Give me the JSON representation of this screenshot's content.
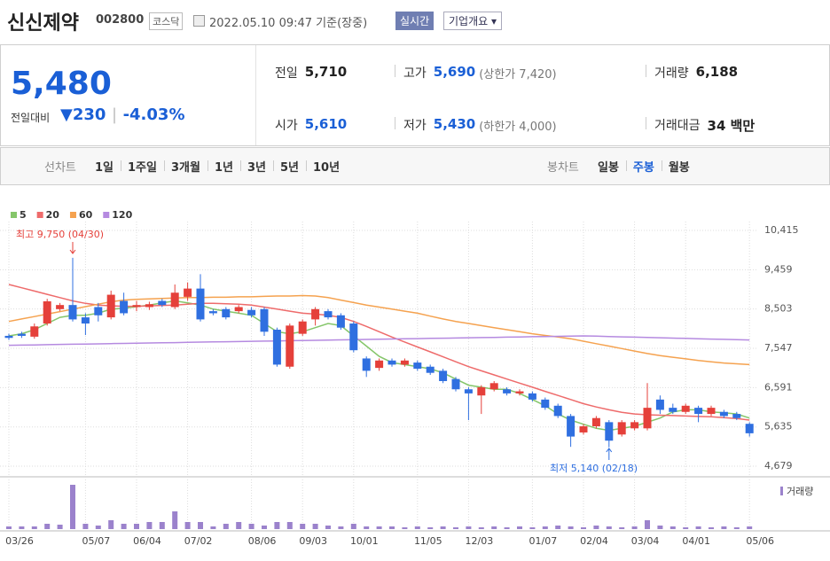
{
  "header": {
    "name": "신신제약",
    "code": "002800",
    "market": "코스닥",
    "timestamp": "2022.05.10 09:47 기준(장중)",
    "realtime": "실시간",
    "company_info": "기업개요"
  },
  "quote": {
    "price": "5,480",
    "change_label": "전일대비",
    "change": "230",
    "change_pct": "-4.03%",
    "stats": [
      {
        "label": "전일",
        "value": "5,710",
        "color": "#222222"
      },
      {
        "label": "고가",
        "value": "5,690",
        "note": "(상한가 7,420)",
        "color": "#1a5fd6"
      },
      {
        "label": "거래량",
        "value": "6,188",
        "color": "#222222"
      },
      {
        "label": "시가",
        "value": "5,610",
        "color": "#1a5fd6"
      },
      {
        "label": "저가",
        "value": "5,430",
        "note": "(하한가 4,000)",
        "color": "#1a5fd6"
      },
      {
        "label": "거래대금",
        "value": "34 백만",
        "color": "#222222"
      }
    ]
  },
  "tabs": {
    "line_label": "선차트",
    "line": [
      "1일",
      "1주일",
      "3개월",
      "1년",
      "3년",
      "5년",
      "10년"
    ],
    "candle_label": "봉차트",
    "candle": [
      "일봉",
      "주봉",
      "월봉"
    ],
    "selected_candle": 1
  },
  "chart_data": {
    "type": "candlestick",
    "categories": [
      "03/26",
      null,
      null,
      null,
      null,
      null,
      "05/07",
      null,
      null,
      null,
      "06/04",
      null,
      null,
      null,
      "07/02",
      null,
      null,
      null,
      null,
      "08/06",
      null,
      null,
      null,
      "09/03",
      null,
      null,
      null,
      "10/01",
      null,
      null,
      null,
      null,
      "11/05",
      null,
      null,
      null,
      "12/03",
      null,
      null,
      null,
      null,
      "01/07",
      null,
      null,
      null,
      "02/04",
      null,
      null,
      null,
      "03/04",
      null,
      null,
      null,
      "04/01",
      null,
      null,
      null,
      null,
      "05/06"
    ],
    "open": [
      7850,
      7900,
      7830,
      8150,
      8500,
      8600,
      8300,
      8550,
      8300,
      8700,
      8550,
      8550,
      8700,
      8550,
      8800,
      9000,
      8450,
      8500,
      8450,
      8480,
      8500,
      8000,
      7100,
      7900,
      8250,
      8450,
      8350,
      8150,
      7300,
      7070,
      7250,
      7150,
      7200,
      7100,
      7000,
      6800,
      6550,
      6400,
      6550,
      6550,
      6450,
      6450,
      6300,
      6150,
      5900,
      5500,
      5650,
      5750,
      5450,
      5600,
      5600,
      6300,
      6100,
      6000,
      6100,
      5950,
      6000,
      5950,
      5710
    ],
    "high": [
      7900,
      7950,
      8150,
      8750,
      8650,
      9750,
      8400,
      8650,
      8950,
      8900,
      8700,
      8680,
      8750,
      9100,
      9150,
      9350,
      8500,
      8550,
      8600,
      8550,
      8550,
      8050,
      8150,
      8250,
      8550,
      8500,
      8400,
      8200,
      7350,
      7300,
      7300,
      7300,
      7250,
      7150,
      7050,
      6850,
      6600,
      6650,
      6750,
      6600,
      6550,
      6500,
      6350,
      6200,
      5950,
      5700,
      5900,
      5800,
      5800,
      5800,
      6700,
      6400,
      6200,
      6200,
      6150,
      6150,
      6050,
      6000,
      5750
    ],
    "low": [
      7750,
      7800,
      7780,
      8100,
      8450,
      8200,
      7870,
      8200,
      8250,
      8350,
      8450,
      8480,
      8550,
      8500,
      8700,
      8200,
      8350,
      8250,
      8400,
      8300,
      7850,
      7100,
      7050,
      7850,
      8100,
      8250,
      8000,
      7450,
      6850,
      7000,
      7100,
      7100,
      7000,
      6900,
      6700,
      6500,
      5800,
      5950,
      6500,
      6400,
      6400,
      6250,
      6050,
      5850,
      5150,
      5450,
      5600,
      5140,
      5400,
      5550,
      5550,
      5950,
      5950,
      5950,
      5750,
      5900,
      5850,
      5800,
      5400
    ],
    "close": [
      7800,
      7850,
      8080,
      8690,
      8600,
      8250,
      8150,
      8350,
      8850,
      8400,
      8600,
      8620,
      8600,
      8900,
      9000,
      8250,
      8400,
      8300,
      8550,
      8350,
      7950,
      7150,
      8100,
      8200,
      8500,
      8300,
      8050,
      7500,
      7000,
      7250,
      7150,
      7250,
      7050,
      6950,
      6750,
      6550,
      6450,
      6600,
      6700,
      6450,
      6500,
      6300,
      6100,
      5900,
      5400,
      5650,
      5850,
      5300,
      5750,
      5750,
      6100,
      6050,
      6000,
      6150,
      5950,
      6100,
      5900,
      5850,
      5480
    ],
    "up_color": "#e5403a",
    "down_color": "#2f6fe0",
    "series": [
      {
        "name": "5",
        "color": "#85c66a",
        "values": [
          7850,
          7900,
          8000,
          8150,
          8300,
          8350,
          8350,
          8400,
          8500,
          8520,
          8560,
          8600,
          8650,
          8700,
          8650,
          8600,
          8500,
          8450,
          8400,
          8350,
          8150,
          7950,
          7900,
          7950,
          8050,
          8150,
          8100,
          7850,
          7600,
          7350,
          7200,
          7150,
          7100,
          7050,
          6950,
          6800,
          6650,
          6600,
          6550,
          6550,
          6450,
          6300,
          6150,
          5950,
          5800,
          5700,
          5600,
          5550,
          5600,
          5650,
          5750,
          5850,
          6000,
          6050,
          6050,
          6000,
          5980,
          5950,
          5850
        ]
      },
      {
        "name": "20",
        "color": "#ee6b6b",
        "values": [
          9100,
          9020,
          8940,
          8860,
          8780,
          8700,
          8640,
          8600,
          8580,
          8570,
          8570,
          8580,
          8590,
          8600,
          8620,
          8640,
          8640,
          8630,
          8620,
          8600,
          8550,
          8500,
          8450,
          8400,
          8380,
          8350,
          8300,
          8200,
          8080,
          7950,
          7820,
          7700,
          7580,
          7460,
          7340,
          7220,
          7100,
          7000,
          6900,
          6800,
          6700,
          6600,
          6500,
          6400,
          6300,
          6200,
          6120,
          6050,
          5990,
          5950,
          5930,
          5920,
          5910,
          5900,
          5890,
          5880,
          5860,
          5840,
          5800
        ]
      },
      {
        "name": "60",
        "color": "#f5a24f",
        "values": [
          8200,
          8260,
          8320,
          8380,
          8440,
          8500,
          8560,
          8620,
          8680,
          8720,
          8740,
          8750,
          8760,
          8770,
          8780,
          8780,
          8790,
          8790,
          8800,
          8800,
          8810,
          8820,
          8820,
          8830,
          8820,
          8780,
          8720,
          8660,
          8600,
          8550,
          8500,
          8450,
          8400,
          8330,
          8260,
          8200,
          8150,
          8100,
          8050,
          8000,
          7950,
          7900,
          7860,
          7820,
          7780,
          7720,
          7660,
          7600,
          7540,
          7480,
          7420,
          7370,
          7330,
          7290,
          7250,
          7220,
          7190,
          7170,
          7150
        ]
      },
      {
        "name": "120",
        "color": "#b58ae0",
        "values": [
          7620,
          7625,
          7630,
          7636,
          7641,
          7646,
          7651,
          7656,
          7661,
          7666,
          7671,
          7676,
          7681,
          7686,
          7691,
          7697,
          7702,
          7707,
          7712,
          7717,
          7722,
          7727,
          7732,
          7737,
          7742,
          7747,
          7752,
          7758,
          7763,
          7768,
          7773,
          7778,
          7783,
          7788,
          7793,
          7798,
          7803,
          7808,
          7813,
          7818,
          7823,
          7829,
          7834,
          7839,
          7844,
          7849,
          7842,
          7834,
          7826,
          7818,
          7811,
          7803,
          7795,
          7788,
          7780,
          7772,
          7765,
          7757,
          7750
        ]
      }
    ],
    "ylim": [
      4490,
      10600
    ],
    "yticks": [
      {
        "value": 10415,
        "label": "10,415"
      },
      {
        "value": 9459,
        "label": "9,459"
      },
      {
        "value": 8503,
        "label": "8,503"
      },
      {
        "value": 7547,
        "label": "7,547"
      },
      {
        "value": 6591,
        "label": "6,591"
      },
      {
        "value": 5635,
        "label": "5,635"
      },
      {
        "value": 4679,
        "label": "4,679"
      }
    ],
    "grid": true,
    "annotations": [
      {
        "text": "최고 9,750 (04/30)",
        "color": "#e5403a"
      },
      {
        "text": "최저 5,140 (02/18)",
        "color": "#2f6fe0"
      }
    ],
    "volume_label": "거래량",
    "volume_color": "#9b82cc",
    "volume_ylim": [
      0,
      440000
    ],
    "volume": [
      24000,
      24000,
      24000,
      48000,
      40000,
      400000,
      48000,
      32000,
      80000,
      48000,
      48000,
      64000,
      64000,
      160000,
      64000,
      64000,
      24000,
      48000,
      64000,
      48000,
      32000,
      64000,
      64000,
      48000,
      48000,
      32000,
      24000,
      48000,
      24000,
      24000,
      24000,
      16000,
      24000,
      16000,
      24000,
      16000,
      24000,
      16000,
      24000,
      16000,
      24000,
      16000,
      24000,
      32000,
      24000,
      16000,
      32000,
      24000,
      16000,
      24000,
      80000,
      32000,
      24000,
      16000,
      24000,
      16000,
      24000,
      16000,
      24000
    ]
  }
}
